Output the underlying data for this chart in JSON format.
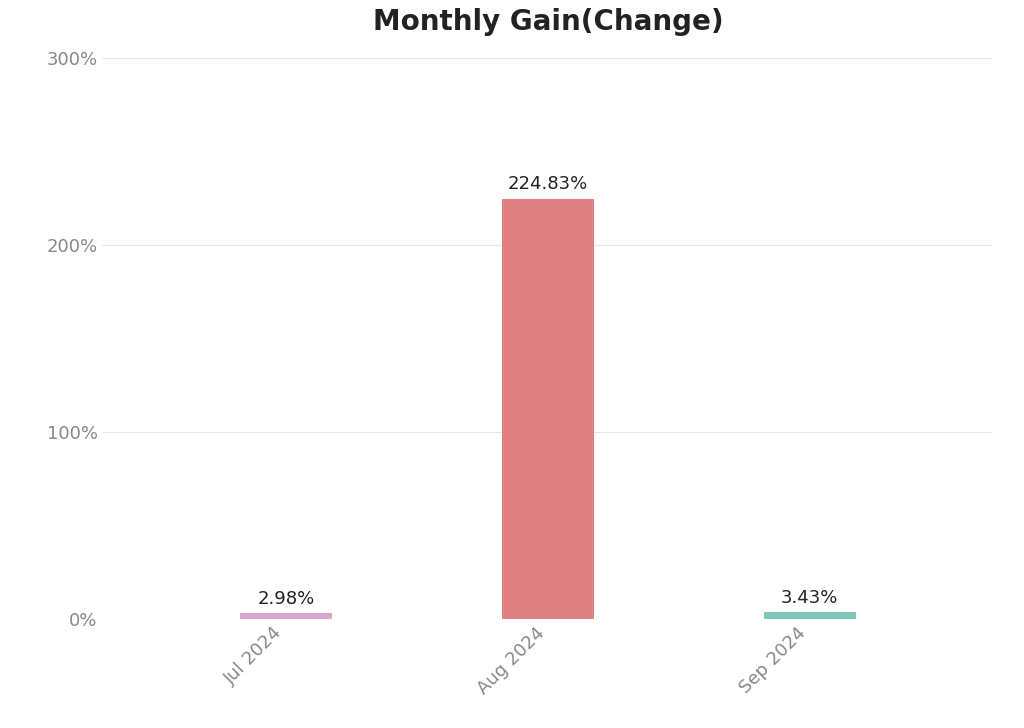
{
  "title": "Monthly Gain(Change)",
  "categories": [
    "Jul 2024",
    "Aug 2024",
    "Sep 2024"
  ],
  "values": [
    2.98,
    224.83,
    3.43
  ],
  "bar_colors": [
    "#d4a8c8",
    "#e08080",
    "#80c8b8"
  ],
  "bar_width": 0.35,
  "value_labels": [
    "2.98%",
    "224.83%",
    "3.43%"
  ],
  "ylim": [
    0,
    300
  ],
  "yticks": [
    0,
    100,
    200,
    300
  ],
  "ytick_labels": [
    "0%",
    "100%",
    "200%",
    "300%"
  ],
  "background_color": "#ffffff",
  "plot_bg_color": "#ffffff",
  "grid_color": "#e8e8e8",
  "title_fontsize": 20,
  "tick_fontsize": 13,
  "tick_label_color": "#888888",
  "title_color": "#222222",
  "annotation_color": "#222222",
  "annotation_fontsize": 13
}
